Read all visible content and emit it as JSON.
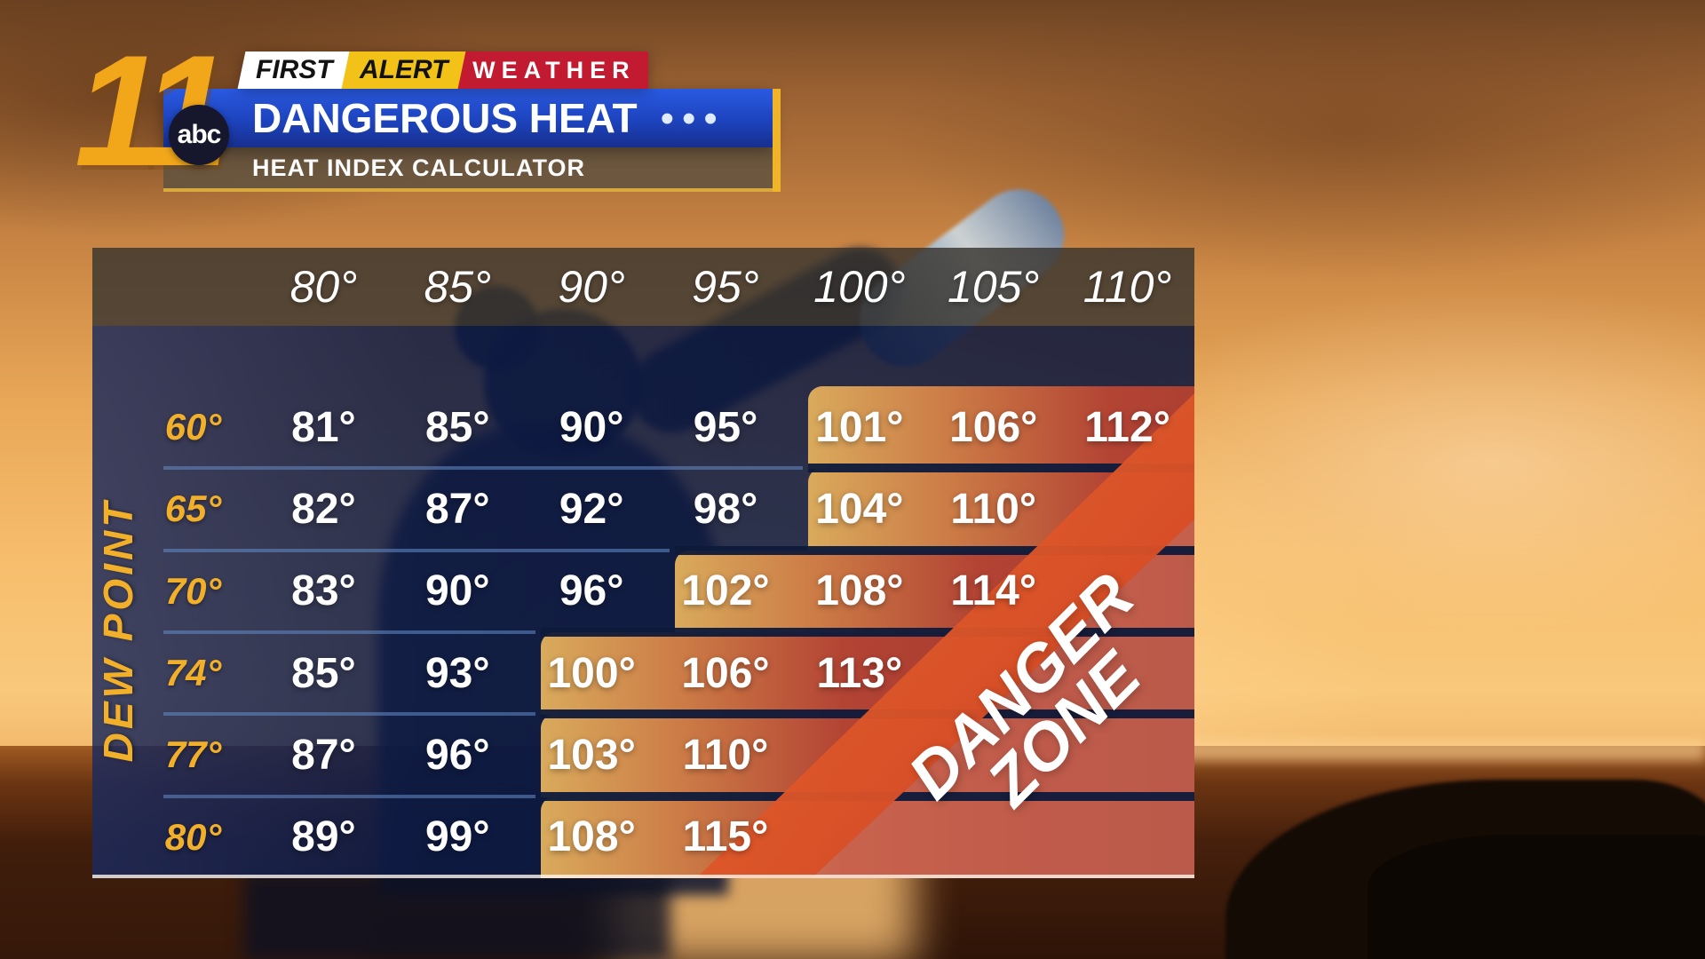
{
  "branding": {
    "channel_number": "11",
    "network": "abc",
    "first_alert": {
      "first": "FIRST",
      "alert": "ALERT",
      "weather": "WEATHER"
    },
    "title": "DANGEROUS HEAT",
    "title_dots": "•••",
    "subtitle": "HEAT INDEX CALCULATOR"
  },
  "chart_data": {
    "type": "heatmap",
    "title": "HEAT INDEX CALCULATOR",
    "columns": [
      "80°",
      "85°",
      "90°",
      "95°",
      "100°",
      "105°",
      "110°"
    ],
    "row_axis_label": "DEW POINT",
    "rows": [
      {
        "dew_point": "60°",
        "values": [
          "81°",
          "85°",
          "90°",
          "95°",
          "101°",
          "106°",
          "112°"
        ],
        "danger_start_col": 4
      },
      {
        "dew_point": "65°",
        "values": [
          "82°",
          "87°",
          "92°",
          "98°",
          "104°",
          "110°",
          ""
        ],
        "danger_start_col": 4
      },
      {
        "dew_point": "70°",
        "values": [
          "83°",
          "90°",
          "96°",
          "102°",
          "108°",
          "114°",
          ""
        ],
        "danger_start_col": 3
      },
      {
        "dew_point": "74°",
        "values": [
          "85°",
          "93°",
          "100°",
          "106°",
          "113°",
          "",
          ""
        ],
        "danger_start_col": 2
      },
      {
        "dew_point": "77°",
        "values": [
          "87°",
          "96°",
          "103°",
          "110°",
          "",
          "",
          ""
        ],
        "danger_start_col": 2
      },
      {
        "dew_point": "80°",
        "values": [
          "89°",
          "99°",
          "108°",
          "115°",
          "",
          "",
          ""
        ],
        "danger_start_col": 2
      }
    ],
    "danger_zone_label": {
      "line1": "DANGER",
      "line2": "ZONE"
    },
    "legend_position": "none",
    "grid": "row-dividers"
  },
  "colors": {
    "accent_yellow": "#F2B02A",
    "table_navy": "#0D1A44",
    "header_gray": "#383430",
    "title_bar_blue": "#1D43BD",
    "weather_red": "#C21A31",
    "alert_yellow": "#F2C218",
    "danger_gold": "#D9AA5C",
    "danger_red": "#A63A30",
    "danger_band_orange": "#EE6D2D"
  }
}
